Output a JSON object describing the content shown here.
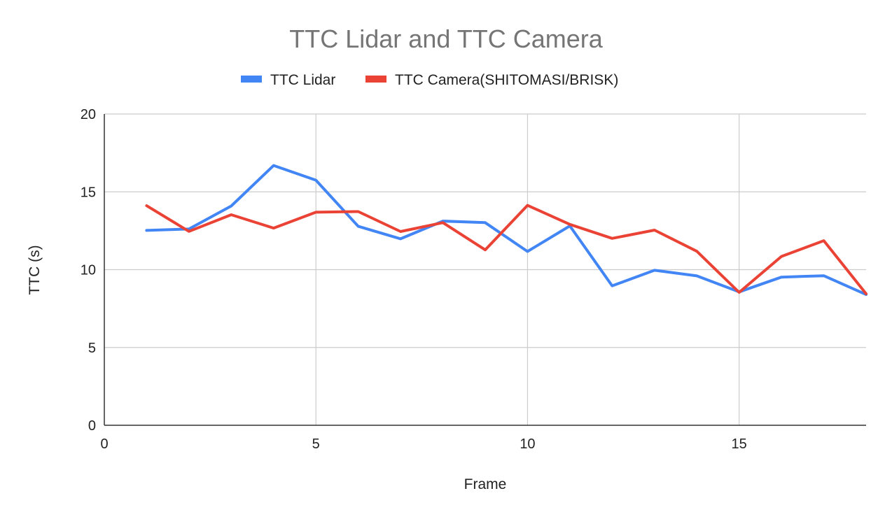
{
  "chart_data": {
    "type": "line",
    "title": "TTC Lidar and TTC Camera",
    "xlabel": "Frame",
    "ylabel": "TTC (s)",
    "xlim": [
      0,
      18
    ],
    "ylim": [
      0,
      20
    ],
    "x_ticks": [
      0,
      5,
      10,
      15
    ],
    "y_ticks": [
      0,
      5,
      10,
      15,
      20
    ],
    "grid": true,
    "legend_position": "top",
    "x": [
      1,
      2,
      3,
      4,
      5,
      6,
      7,
      8,
      9,
      10,
      11,
      12,
      13,
      14,
      15,
      16,
      17,
      18
    ],
    "series": [
      {
        "name": "TTC Lidar",
        "color": "#4285F4",
        "values": [
          12.52,
          12.61,
          14.09,
          16.69,
          15.75,
          12.78,
          11.98,
          13.12,
          13.02,
          11.17,
          12.81,
          8.96,
          9.96,
          9.6,
          8.57,
          9.52,
          9.61,
          8.4
        ]
      },
      {
        "name": "TTC Camera(SHITOMASI/BRISK)",
        "color": "#EA4335",
        "values": [
          14.11,
          12.46,
          13.53,
          12.67,
          13.69,
          13.73,
          12.45,
          13.02,
          11.27,
          14.13,
          12.91,
          12.01,
          12.54,
          11.18,
          8.54,
          10.85,
          11.86,
          8.45
        ]
      }
    ]
  }
}
